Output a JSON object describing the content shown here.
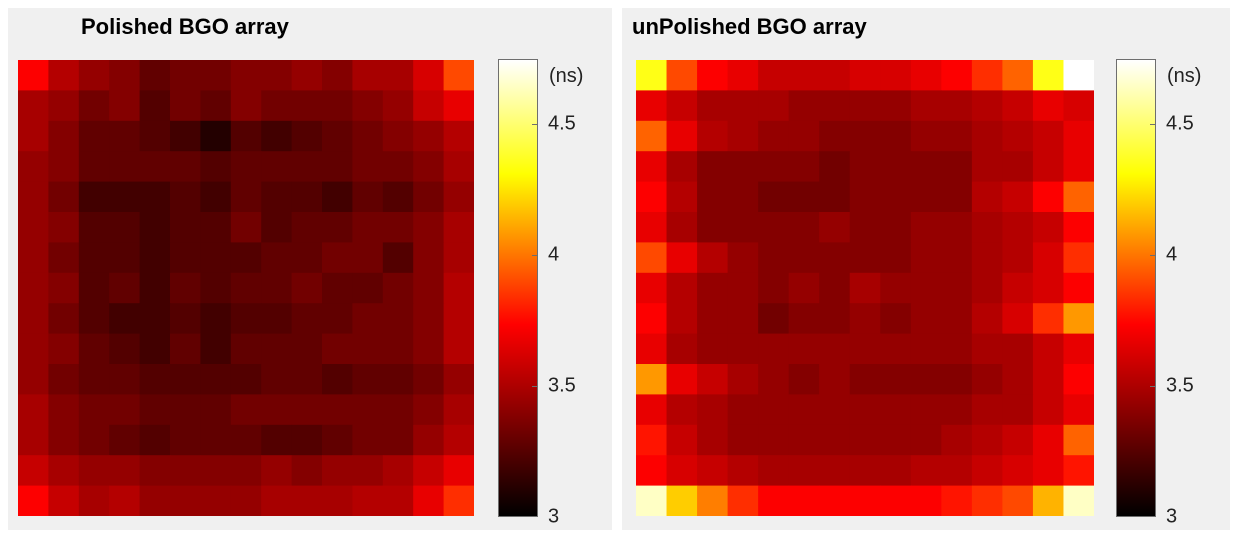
{
  "panels": [
    {
      "title": "Polished BGO array",
      "unit_label": "(ns)"
    },
    {
      "title": "unPolished BGO array",
      "unit_label": "(ns)"
    }
  ],
  "chart_data": [
    {
      "type": "heatmap",
      "title": "Polished BGO array",
      "rows": 15,
      "cols": 15,
      "colormap": "hot",
      "clim": [
        3,
        4.75
      ],
      "colorbar_ticks": [
        3,
        3.5,
        4,
        4.5
      ],
      "colorbar_tick_labels": [
        "3",
        "3.5",
        "4",
        "4.5"
      ],
      "colorbar_label": "(ns)",
      "values": [
        [
          3.73,
          3.52,
          3.43,
          3.38,
          3.28,
          3.33,
          3.33,
          3.38,
          3.38,
          3.43,
          3.38,
          3.48,
          3.48,
          3.62,
          3.9
        ],
        [
          3.48,
          3.43,
          3.33,
          3.38,
          3.24,
          3.33,
          3.28,
          3.38,
          3.33,
          3.33,
          3.33,
          3.38,
          3.43,
          3.57,
          3.67
        ],
        [
          3.48,
          3.38,
          3.28,
          3.28,
          3.24,
          3.19,
          3.1,
          3.24,
          3.19,
          3.24,
          3.28,
          3.33,
          3.38,
          3.43,
          3.52
        ],
        [
          3.43,
          3.38,
          3.28,
          3.28,
          3.28,
          3.28,
          3.24,
          3.28,
          3.28,
          3.28,
          3.28,
          3.33,
          3.33,
          3.38,
          3.48
        ],
        [
          3.43,
          3.33,
          3.19,
          3.19,
          3.19,
          3.24,
          3.19,
          3.28,
          3.24,
          3.24,
          3.19,
          3.28,
          3.24,
          3.33,
          3.43
        ],
        [
          3.43,
          3.38,
          3.24,
          3.24,
          3.19,
          3.24,
          3.24,
          3.33,
          3.24,
          3.28,
          3.28,
          3.33,
          3.33,
          3.38,
          3.48
        ],
        [
          3.43,
          3.33,
          3.24,
          3.24,
          3.19,
          3.24,
          3.24,
          3.24,
          3.28,
          3.28,
          3.33,
          3.33,
          3.24,
          3.38,
          3.48
        ],
        [
          3.43,
          3.38,
          3.24,
          3.28,
          3.19,
          3.28,
          3.24,
          3.28,
          3.28,
          3.33,
          3.28,
          3.28,
          3.33,
          3.38,
          3.52
        ],
        [
          3.43,
          3.33,
          3.24,
          3.19,
          3.19,
          3.24,
          3.19,
          3.24,
          3.24,
          3.28,
          3.28,
          3.33,
          3.33,
          3.38,
          3.52
        ],
        [
          3.43,
          3.38,
          3.28,
          3.24,
          3.19,
          3.28,
          3.19,
          3.28,
          3.28,
          3.28,
          3.33,
          3.33,
          3.33,
          3.38,
          3.52
        ],
        [
          3.43,
          3.33,
          3.28,
          3.28,
          3.24,
          3.24,
          3.24,
          3.24,
          3.28,
          3.28,
          3.24,
          3.28,
          3.28,
          3.33,
          3.43
        ],
        [
          3.48,
          3.38,
          3.33,
          3.33,
          3.28,
          3.28,
          3.28,
          3.33,
          3.33,
          3.33,
          3.33,
          3.33,
          3.33,
          3.38,
          3.48
        ],
        [
          3.48,
          3.38,
          3.33,
          3.28,
          3.24,
          3.28,
          3.28,
          3.28,
          3.24,
          3.24,
          3.28,
          3.33,
          3.33,
          3.43,
          3.52
        ],
        [
          3.57,
          3.48,
          3.43,
          3.43,
          3.38,
          3.38,
          3.38,
          3.38,
          3.43,
          3.38,
          3.43,
          3.43,
          3.48,
          3.57,
          3.67
        ],
        [
          3.73,
          3.57,
          3.48,
          3.52,
          3.43,
          3.43,
          3.43,
          3.43,
          3.48,
          3.48,
          3.48,
          3.52,
          3.52,
          3.67,
          3.84
        ]
      ]
    },
    {
      "type": "heatmap",
      "title": "unPolished BGO array",
      "rows": 15,
      "cols": 15,
      "colormap": "hot",
      "clim": [
        3,
        4.75
      ],
      "colorbar_ticks": [
        3,
        3.5,
        4,
        4.5
      ],
      "colorbar_tick_labels": [
        "3",
        "3.5",
        "4",
        "4.5"
      ],
      "colorbar_label": "(ns)",
      "values": [
        [
          4.35,
          3.9,
          3.73,
          3.67,
          3.57,
          3.57,
          3.57,
          3.62,
          3.62,
          3.67,
          3.73,
          3.84,
          3.96,
          4.35,
          4.75
        ],
        [
          3.67,
          3.57,
          3.48,
          3.48,
          3.48,
          3.43,
          3.43,
          3.43,
          3.43,
          3.48,
          3.48,
          3.52,
          3.57,
          3.67,
          3.62
        ],
        [
          3.96,
          3.67,
          3.52,
          3.48,
          3.43,
          3.43,
          3.38,
          3.38,
          3.38,
          3.43,
          3.43,
          3.48,
          3.52,
          3.57,
          3.67
        ],
        [
          3.67,
          3.48,
          3.38,
          3.38,
          3.38,
          3.38,
          3.33,
          3.38,
          3.38,
          3.38,
          3.38,
          3.48,
          3.48,
          3.57,
          3.67
        ],
        [
          3.73,
          3.52,
          3.38,
          3.38,
          3.33,
          3.33,
          3.33,
          3.38,
          3.38,
          3.38,
          3.38,
          3.52,
          3.57,
          3.73,
          3.96
        ],
        [
          3.67,
          3.48,
          3.38,
          3.38,
          3.38,
          3.38,
          3.43,
          3.38,
          3.38,
          3.43,
          3.43,
          3.48,
          3.52,
          3.57,
          3.73
        ],
        [
          3.9,
          3.67,
          3.52,
          3.43,
          3.38,
          3.38,
          3.38,
          3.38,
          3.38,
          3.43,
          3.43,
          3.48,
          3.52,
          3.62,
          3.84
        ],
        [
          3.67,
          3.52,
          3.43,
          3.43,
          3.38,
          3.43,
          3.38,
          3.48,
          3.43,
          3.43,
          3.43,
          3.48,
          3.57,
          3.62,
          3.73
        ],
        [
          3.73,
          3.52,
          3.43,
          3.43,
          3.33,
          3.38,
          3.38,
          3.43,
          3.38,
          3.43,
          3.43,
          3.52,
          3.62,
          3.84,
          4.08
        ],
        [
          3.67,
          3.48,
          3.43,
          3.43,
          3.43,
          3.43,
          3.43,
          3.43,
          3.43,
          3.43,
          3.43,
          3.48,
          3.48,
          3.57,
          3.67
        ],
        [
          4.08,
          3.67,
          3.57,
          3.48,
          3.43,
          3.38,
          3.43,
          3.38,
          3.38,
          3.38,
          3.38,
          3.43,
          3.48,
          3.57,
          3.73
        ],
        [
          3.67,
          3.52,
          3.48,
          3.43,
          3.43,
          3.43,
          3.43,
          3.43,
          3.43,
          3.43,
          3.43,
          3.48,
          3.48,
          3.57,
          3.67
        ],
        [
          3.78,
          3.57,
          3.48,
          3.43,
          3.43,
          3.43,
          3.43,
          3.43,
          3.43,
          3.43,
          3.48,
          3.52,
          3.57,
          3.67,
          3.96
        ],
        [
          3.73,
          3.62,
          3.57,
          3.52,
          3.48,
          3.48,
          3.48,
          3.48,
          3.48,
          3.52,
          3.52,
          3.57,
          3.62,
          3.67,
          3.78
        ],
        [
          4.65,
          4.2,
          4.02,
          3.84,
          3.73,
          3.73,
          3.73,
          3.73,
          3.73,
          3.73,
          3.78,
          3.84,
          3.9,
          4.14,
          4.65
        ]
      ]
    }
  ]
}
